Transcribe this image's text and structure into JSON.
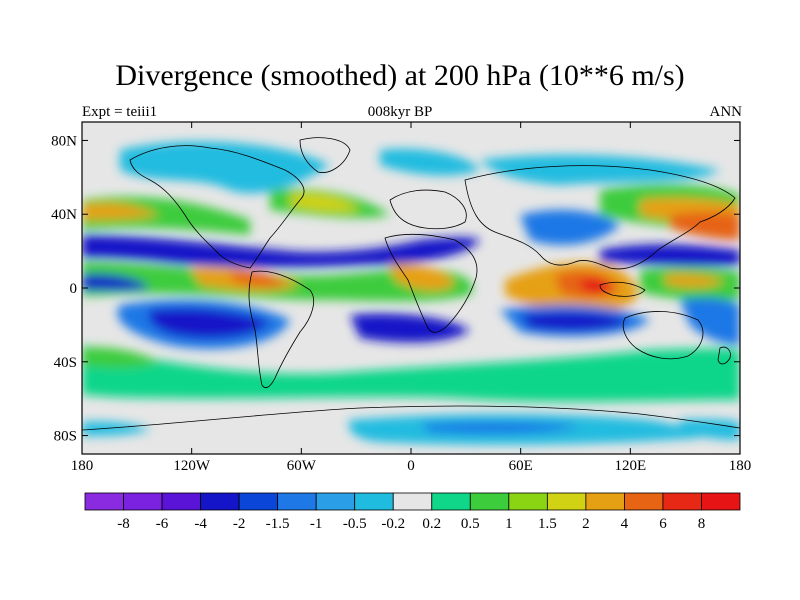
{
  "title": "Divergence (smoothed) at 200 hPa (10**6 m/s)",
  "subtitle_left": "Expt = teiii1",
  "subtitle_center": "008kyr BP",
  "subtitle_right": "ANN",
  "map": {
    "projection": "cylindrical-equidistant",
    "lon_range": [
      -180,
      180
    ],
    "lat_range": [
      -90,
      90
    ],
    "x_tick_values": [
      -180,
      -120,
      -60,
      0,
      60,
      120,
      180
    ],
    "x_tick_labels": [
      "180",
      "120W",
      "60W",
      "0",
      "60E",
      "120E",
      "180"
    ],
    "y_tick_values": [
      80,
      40,
      0,
      -40,
      -80
    ],
    "y_tick_labels": [
      "80N",
      "40N",
      "0",
      "40S",
      "80S"
    ],
    "coastlines": true,
    "field_description_values": "filled contours of upper-level divergence"
  },
  "colorbar": {
    "labels": [
      "-8",
      "-6",
      "-4",
      "-2",
      "-1.5",
      "-1",
      "-0.5",
      "-0.2",
      "0.2",
      "0.5",
      "1",
      "1.5",
      "2",
      "4",
      "6",
      "8"
    ],
    "colors": [
      "#8a2be2",
      "#7a22e0",
      "#5a14d8",
      "#1414c8",
      "#0a46d8",
      "#1e78e6",
      "#2a9ee6",
      "#20bce0",
      "#e6e6e6",
      "#10d68a",
      "#3ccc3c",
      "#8ad414",
      "#d2d214",
      "#e6a014",
      "#e66414",
      "#e62814",
      "#e61414"
    ]
  },
  "colors": {
    "land_outline": "#000000",
    "neutral": "#e6e6e6"
  }
}
